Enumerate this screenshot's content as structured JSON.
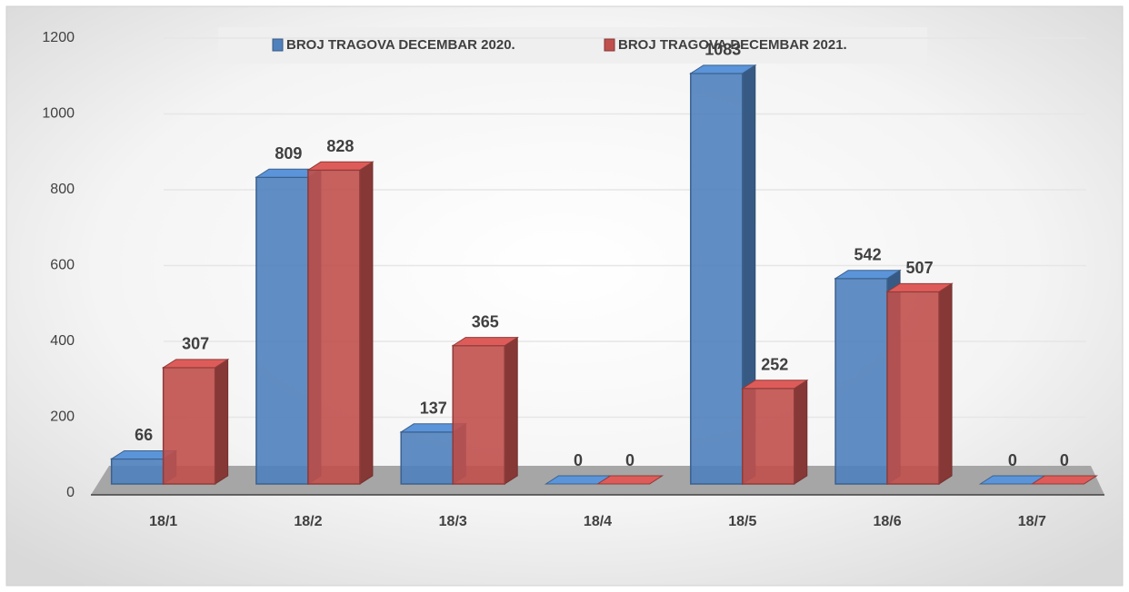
{
  "chart_data": {
    "type": "bar",
    "categories": [
      "18/1",
      "18/2",
      "18/3",
      "18/4",
      "18/5",
      "18/6",
      "18/7"
    ],
    "series": [
      {
        "name": "BROJ TRAGOVA DECEMBAR 2020.",
        "color": "#4f81bd",
        "values": [
          66,
          809,
          137,
          0,
          1083,
          542,
          0
        ]
      },
      {
        "name": "BROJ TRAGOVA DECEMBAR 2021.",
        "color": "#c0504d",
        "values": [
          307,
          828,
          365,
          0,
          252,
          507,
          0
        ]
      }
    ],
    "ylim": [
      0,
      1200
    ],
    "yticks": [
      0,
      200,
      400,
      600,
      800,
      1000,
      1200
    ],
    "grid": true,
    "legend": "top"
  }
}
